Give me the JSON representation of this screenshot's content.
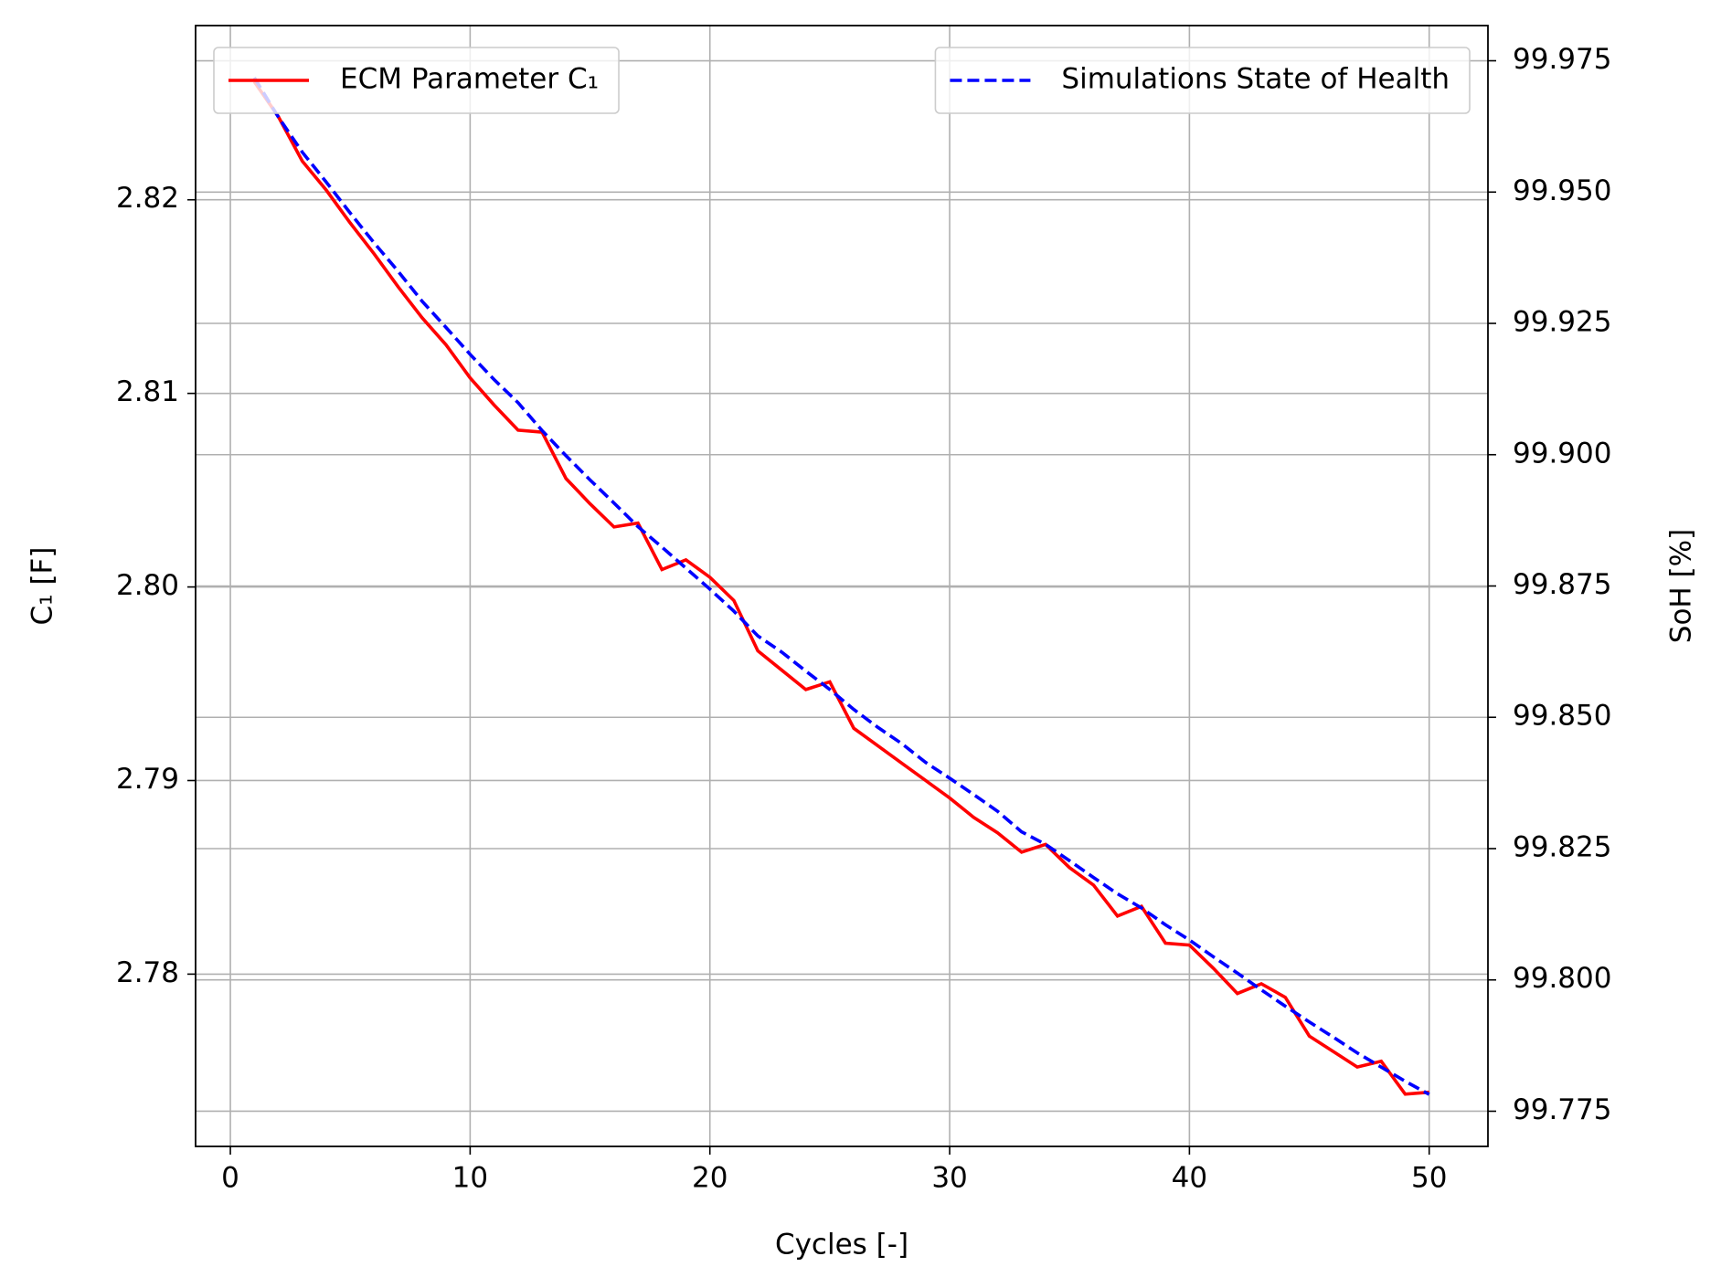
{
  "chart_data": {
    "type": "line",
    "xlabel": "Cycles [-]",
    "ylabel": "C₁ [F]",
    "y2label": "SoH [%]",
    "ycolor": "#d62728",
    "y2color": "#1f77b4",
    "grid": true,
    "x": [
      1,
      2,
      3,
      4,
      5,
      6,
      7,
      8,
      9,
      10,
      11,
      12,
      13,
      14,
      15,
      16,
      17,
      18,
      19,
      20,
      21,
      22,
      23,
      24,
      25,
      26,
      27,
      28,
      29,
      30,
      31,
      32,
      33,
      34,
      35,
      36,
      37,
      38,
      39,
      40,
      41,
      42,
      43,
      44,
      45,
      46,
      47,
      48,
      49,
      50
    ],
    "xlim": [
      -1.45,
      52.45
    ],
    "xticks": [
      0,
      10,
      20,
      30,
      40,
      50
    ],
    "ylim": [
      2.7711,
      2.829
    ],
    "yticks": [
      2.78,
      2.79,
      {
        "value": 2.8,
        "label": "2.80"
      },
      2.81,
      2.82
    ],
    "y2lim": [
      99.7683,
      99.9817
    ],
    "y2ticks": [
      99.775,
      {
        "value": 99.8,
        "label": "99.800"
      },
      99.825,
      {
        "value": 99.85,
        "label": "99.850"
      },
      99.875,
      {
        "value": 99.9,
        "label": "99.900"
      },
      99.925,
      {
        "value": 99.95,
        "label": "99.950"
      },
      99.975
    ],
    "series": [
      {
        "name": "ECM Parameter C₁",
        "color": "#ff0000",
        "linestyle": "solid",
        "axis": "y",
        "legend_loc": "upper left",
        "values": [
          2.8261,
          2.8243,
          2.822,
          2.8205,
          2.8188,
          2.8172,
          2.8155,
          2.8139,
          2.8125,
          2.8108,
          2.8094,
          2.8081,
          2.808,
          2.8056,
          2.8043,
          2.8031,
          2.8033,
          2.8009,
          2.8014,
          2.8005,
          2.7993,
          2.7967,
          2.7957,
          2.7947,
          2.7951,
          2.7927,
          2.7918,
          2.7909,
          2.79,
          2.7891,
          2.7881,
          2.7873,
          2.7863,
          2.7867,
          2.7855,
          2.7846,
          2.783,
          2.7835,
          2.7816,
          2.7815,
          2.7803,
          2.779,
          2.7795,
          2.7788,
          2.7768,
          2.776,
          2.7752,
          2.7755,
          2.7738,
          2.7739
        ]
      },
      {
        "name": "Simulations State of Health",
        "color": "#0000ff",
        "linestyle": "dashed",
        "axis": "y2",
        "legend_loc": "upper right",
        "values": [
          99.9718,
          99.9643,
          99.9576,
          99.9519,
          99.946,
          99.9403,
          99.9349,
          99.9292,
          99.9242,
          99.9191,
          99.9143,
          99.9099,
          99.9046,
          99.8998,
          99.8952,
          99.8908,
          99.8863,
          99.8824,
          99.8784,
          99.8744,
          99.8702,
          99.8655,
          99.8624,
          99.8588,
          99.8553,
          99.8515,
          99.8481,
          99.845,
          99.8414,
          99.8384,
          99.8353,
          99.8321,
          99.8282,
          99.8258,
          99.8227,
          99.8195,
          99.8164,
          99.8137,
          99.8105,
          99.8076,
          99.8044,
          99.8013,
          99.7981,
          99.795,
          99.792,
          99.7891,
          99.7861,
          99.7834,
          99.7807,
          99.7782
        ]
      }
    ]
  }
}
